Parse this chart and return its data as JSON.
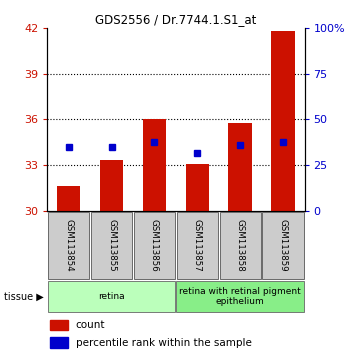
{
  "title": "GDS2556 / Dr.7744.1.S1_at",
  "samples": [
    "GSM113854",
    "GSM113855",
    "GSM113856",
    "GSM113857",
    "GSM113858",
    "GSM113859"
  ],
  "count_values": [
    31.6,
    33.3,
    36.0,
    33.1,
    35.8,
    41.8
  ],
  "percentile_values": [
    34.2,
    34.2,
    34.5,
    33.8,
    34.3,
    34.5
  ],
  "y_min": 30,
  "y_max": 42,
  "y_ticks": [
    30,
    33,
    36,
    39,
    42
  ],
  "y_right_ticks_val": [
    0,
    25,
    50,
    75,
    100
  ],
  "y_right_labels": [
    "0",
    "25",
    "50",
    "75",
    "100%"
  ],
  "bar_color": "#cc1100",
  "point_color": "#0000cc",
  "tissue_groups": [
    {
      "label": "retina",
      "start": 0,
      "end": 3,
      "color": "#bbffbb"
    },
    {
      "label": "retina with retinal pigment\nepithelium",
      "start": 3,
      "end": 6,
      "color": "#88ee88"
    }
  ],
  "tissue_label": "tissue",
  "bar_bottom": 30,
  "bar_width": 0.55,
  "grid_yticks": [
    33,
    36,
    39
  ]
}
